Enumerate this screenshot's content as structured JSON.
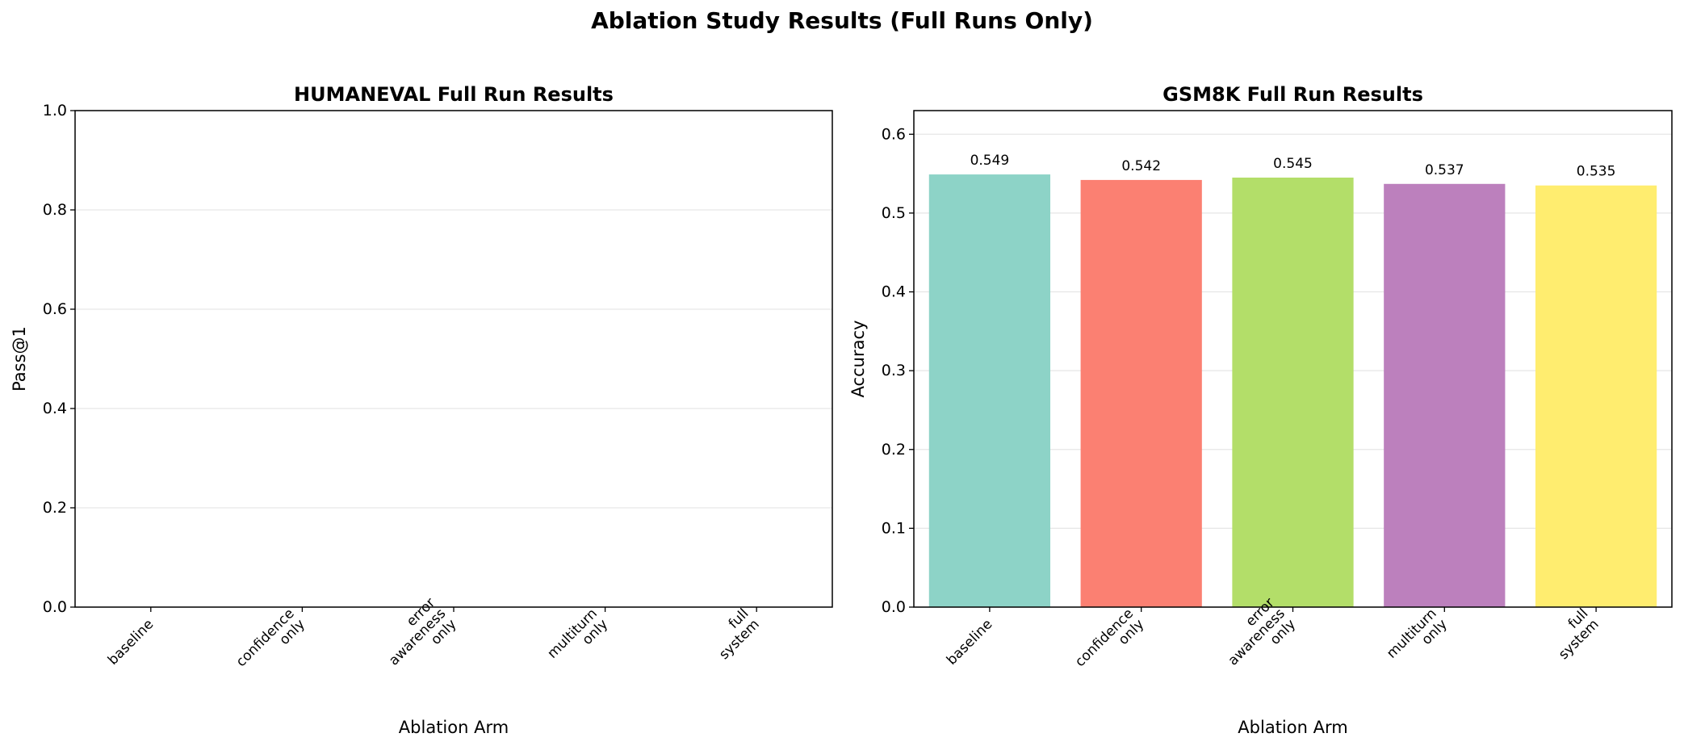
{
  "title": "Ablation Study Results (Full Runs Only)",
  "chart_data": [
    {
      "type": "bar",
      "title": "HUMANEVAL Full Run Results",
      "xlabel": "Ablation Arm",
      "ylabel": "Pass@1",
      "categories": [
        "baseline",
        "confidence\nonly",
        "error\nawareness\nonly",
        "multiturn\nonly",
        "full\nsystem"
      ],
      "values": [
        null,
        null,
        null,
        null,
        null
      ],
      "colors": [
        "#8dd3c7",
        "#fb8072",
        "#b3de69",
        "#bc80bd",
        "#ffed6f"
      ],
      "ylim": [
        0,
        1
      ],
      "yticks": [
        {
          "value": 0,
          "label": "0.0"
        },
        0.2,
        0.4,
        0.6,
        0.8,
        {
          "value": 1,
          "label": "1.0"
        }
      ],
      "grid": true
    },
    {
      "type": "bar",
      "title": "GSM8K Full Run Results",
      "xlabel": "Ablation Arm",
      "ylabel": "Accuracy",
      "categories": [
        "baseline",
        "confidence\nonly",
        "error\nawareness\nonly",
        "multiturn\nonly",
        "full\nsystem"
      ],
      "values": [
        0.549,
        0.542,
        0.545,
        0.537,
        0.535
      ],
      "colors": [
        "#8dd3c7",
        "#fb8072",
        "#b3de69",
        "#bc80bd",
        "#ffed6f"
      ],
      "ylim": [
        0,
        0.63
      ],
      "yticks": [
        {
          "value": 0,
          "label": "0.0"
        },
        0.1,
        0.2,
        0.3,
        0.4,
        0.5,
        0.6
      ],
      "grid": true
    }
  ]
}
